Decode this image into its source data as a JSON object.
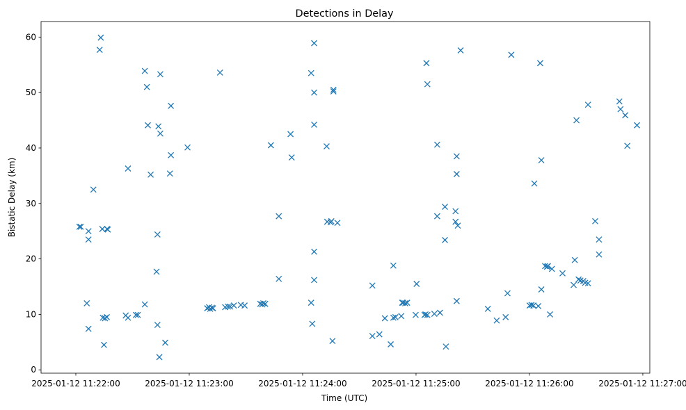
{
  "chart_data": {
    "type": "scatter",
    "title": "Detections in Delay",
    "xlabel": "Time (UTC)",
    "ylabel": "Bistatic Delay (km)",
    "marker": "x",
    "color": "#1f77b4",
    "grid": false,
    "x_units": "seconds after 2025-01-12 11:22:00",
    "xlim": [
      -18.4,
      303.7
    ],
    "ylim": [
      -0.6,
      62.8
    ],
    "xticks": [
      {
        "value": 0,
        "label": "2025-01-12 11:22:00"
      },
      {
        "value": 60,
        "label": "2025-01-12 11:23:00"
      },
      {
        "value": 120,
        "label": "2025-01-12 11:24:00"
      },
      {
        "value": 180,
        "label": "2025-01-12 11:25:00"
      },
      {
        "value": 240,
        "label": "2025-01-12 11:26:00"
      },
      {
        "value": 300,
        "label": "2025-01-12 11:27:00"
      }
    ],
    "yticks": [
      {
        "value": 0,
        "label": "0"
      },
      {
        "value": 10,
        "label": "10"
      },
      {
        "value": 20,
        "label": "20"
      },
      {
        "value": 30,
        "label": "30"
      },
      {
        "value": 40,
        "label": "40"
      },
      {
        "value": 50,
        "label": "50"
      },
      {
        "value": 60,
        "label": "60"
      }
    ],
    "points": [
      [
        1.9,
        25.8
      ],
      [
        2.6,
        25.8
      ],
      [
        5.8,
        12.0
      ],
      [
        6.7,
        7.4
      ],
      [
        6.7,
        25.0
      ],
      [
        6.7,
        23.5
      ],
      [
        9.3,
        32.5
      ],
      [
        12.6,
        57.7
      ],
      [
        13.2,
        59.9
      ],
      [
        14.0,
        25.4
      ],
      [
        14.3,
        9.4
      ],
      [
        14.9,
        4.5
      ],
      [
        15.4,
        9.3
      ],
      [
        16.4,
        9.5
      ],
      [
        16.9,
        25.3
      ],
      [
        16.5,
        25.4
      ],
      [
        26.4,
        9.8
      ],
      [
        27.6,
        9.4
      ],
      [
        27.6,
        36.3
      ],
      [
        31.8,
        9.9
      ],
      [
        32.8,
        9.9
      ],
      [
        36.5,
        11.8
      ],
      [
        36.5,
        53.9
      ],
      [
        37.6,
        51.0
      ],
      [
        38.1,
        44.1
      ],
      [
        39.6,
        35.2
      ],
      [
        42.7,
        17.7
      ],
      [
        43.2,
        8.1
      ],
      [
        43.2,
        24.4
      ],
      [
        43.7,
        43.9
      ],
      [
        44.2,
        2.3
      ],
      [
        44.7,
        53.3
      ],
      [
        44.7,
        42.6
      ],
      [
        47.3,
        4.9
      ],
      [
        49.8,
        35.4
      ],
      [
        50.3,
        38.7
      ],
      [
        50.3,
        47.6
      ],
      [
        59.1,
        40.1
      ],
      [
        69.5,
        11.1
      ],
      [
        70.5,
        11.3
      ],
      [
        71.1,
        11.0
      ],
      [
        72.0,
        11.2
      ],
      [
        72.6,
        11.1
      ],
      [
        76.3,
        53.6
      ],
      [
        79.0,
        11.3
      ],
      [
        80.5,
        11.4
      ],
      [
        81.6,
        11.4
      ],
      [
        83.6,
        11.6
      ],
      [
        87.3,
        11.7
      ],
      [
        89.3,
        11.6
      ],
      [
        97.6,
        11.9
      ],
      [
        98.6,
        11.8
      ],
      [
        99.2,
        12.0
      ],
      [
        100.2,
        11.9
      ],
      [
        103.2,
        40.5
      ],
      [
        107.4,
        27.7
      ],
      [
        107.4,
        16.4
      ],
      [
        113.6,
        42.5
      ],
      [
        114.2,
        38.3
      ],
      [
        124.5,
        53.5
      ],
      [
        124.5,
        12.1
      ],
      [
        125.1,
        8.3
      ],
      [
        126.1,
        58.9
      ],
      [
        126.1,
        50.0
      ],
      [
        126.1,
        44.2
      ],
      [
        126.1,
        21.3
      ],
      [
        126.1,
        16.2
      ],
      [
        132.7,
        40.3
      ],
      [
        133.0,
        26.7
      ],
      [
        134.8,
        26.6
      ],
      [
        135.2,
        26.8
      ],
      [
        135.8,
        5.2
      ],
      [
        136.3,
        50.2
      ],
      [
        136.3,
        50.5
      ],
      [
        138.4,
        26.5
      ],
      [
        156.9,
        15.2
      ],
      [
        156.9,
        6.1
      ],
      [
        160.6,
        6.4
      ],
      [
        163.5,
        9.3
      ],
      [
        166.6,
        4.6
      ],
      [
        168.0,
        18.8
      ],
      [
        168.0,
        9.4
      ],
      [
        169.1,
        9.5
      ],
      [
        172.2,
        9.7
      ],
      [
        172.7,
        12.1
      ],
      [
        173.2,
        12.1
      ],
      [
        174.3,
        12.0
      ],
      [
        175.3,
        12.1
      ],
      [
        179.8,
        9.9
      ],
      [
        180.3,
        15.5
      ],
      [
        184.5,
        9.9
      ],
      [
        185.0,
        10.0
      ],
      [
        185.5,
        55.3
      ],
      [
        186.0,
        51.5
      ],
      [
        186.0,
        9.9
      ],
      [
        189.7,
        10.1
      ],
      [
        191.2,
        40.6
      ],
      [
        191.2,
        27.7
      ],
      [
        192.7,
        10.3
      ],
      [
        195.3,
        29.4
      ],
      [
        195.3,
        23.4
      ],
      [
        195.8,
        4.2
      ],
      [
        200.9,
        28.6
      ],
      [
        200.9,
        26.7
      ],
      [
        201.5,
        38.5
      ],
      [
        201.5,
        35.3
      ],
      [
        201.5,
        12.4
      ],
      [
        202.1,
        26.0
      ],
      [
        203.6,
        57.6
      ],
      [
        218.0,
        11.0
      ],
      [
        222.7,
        8.9
      ],
      [
        227.4,
        9.5
      ],
      [
        228.4,
        13.8
      ],
      [
        230.4,
        56.8
      ],
      [
        240.1,
        11.6
      ],
      [
        241.1,
        11.7
      ],
      [
        242.1,
        11.6
      ],
      [
        242.6,
        33.6
      ],
      [
        244.7,
        11.5
      ],
      [
        245.7,
        55.3
      ],
      [
        246.3,
        37.8
      ],
      [
        246.3,
        14.5
      ],
      [
        248.3,
        18.7
      ],
      [
        249.3,
        18.6
      ],
      [
        249.8,
        18.7
      ],
      [
        250.9,
        10.0
      ],
      [
        251.9,
        18.2
      ],
      [
        257.5,
        17.4
      ],
      [
        263.4,
        15.3
      ],
      [
        264.0,
        19.8
      ],
      [
        264.9,
        45.0
      ],
      [
        266.0,
        16.3
      ],
      [
        267.0,
        16.1
      ],
      [
        268.5,
        16.0
      ],
      [
        269.5,
        15.7
      ],
      [
        271.0,
        15.6
      ],
      [
        271.0,
        47.8
      ],
      [
        274.8,
        26.8
      ],
      [
        276.8,
        23.5
      ],
      [
        276.8,
        20.8
      ],
      [
        287.6,
        48.4
      ],
      [
        288.2,
        47.0
      ],
      [
        290.7,
        45.9
      ],
      [
        291.8,
        40.4
      ],
      [
        296.9,
        44.1
      ]
    ]
  }
}
